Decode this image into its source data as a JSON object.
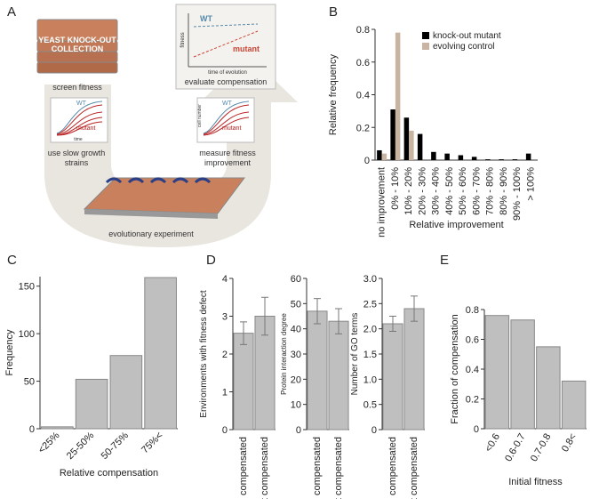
{
  "diagram": {
    "panel_label": "A",
    "collection_title": [
      "YEAST KNOCK-OUT",
      "COLLECTION"
    ],
    "screen": "screen fitness",
    "slow": [
      "use slow growth",
      "strains"
    ],
    "experiment": "evolutionary experiment",
    "measure": [
      "measure fitness",
      "improvement"
    ],
    "evaluate": "evaluate compensation",
    "wt": "WT",
    "mutant": "mutant",
    "cell_number": "cell number",
    "time": "time",
    "fitness": "fitness",
    "time_of_evolution": "time of evolution"
  },
  "chart_data": [
    {
      "type": "bar",
      "panel_label": "B",
      "ylabel": "Relative frequency",
      "xlabel": "Relative improvement",
      "categories": [
        "no improvement",
        "0% - 10%",
        "10% - 20%",
        "20% - 30%",
        "30% - 40%",
        "40% - 50%",
        "50% - 60%",
        "60% - 70%",
        "70% - 80%",
        "80% - 90%",
        "90% - 100%",
        "> 100%"
      ],
      "series": [
        {
          "name": "knock-out mutant",
          "color": "#000000",
          "values": [
            0.06,
            0.31,
            0.26,
            0.16,
            0.05,
            0.04,
            0.03,
            0.02,
            0.005,
            0.005,
            0.005,
            0.04
          ]
        },
        {
          "name": "evolving control",
          "color": "#c8b4a0",
          "values": [
            0.04,
            0.78,
            0.18,
            0,
            0,
            0,
            0,
            0,
            0,
            0,
            0,
            0
          ]
        }
      ],
      "ylim": [
        0,
        0.8
      ],
      "yticks": [
        0,
        0.2,
        0.4,
        0.6,
        0.8
      ],
      "legend": "top-right"
    },
    {
      "type": "bar",
      "panel_label": "C",
      "ylabel": "Frequency",
      "xlabel": "Relative compensation",
      "categories": [
        "<25%",
        "25-50%",
        "50-75%",
        "75%<"
      ],
      "values": [
        2,
        52,
        77,
        159
      ],
      "color": "#bfbfbf",
      "ylim": [
        0,
        160
      ],
      "yticks": [
        0,
        50,
        100,
        150
      ]
    },
    {
      "type": "bar",
      "panel_label": "D",
      "ylabel": "Environments with fitness defect",
      "categories": [
        "compensated",
        "not compensated"
      ],
      "values": [
        2.55,
        3.0
      ],
      "errors": [
        0.3,
        0.5
      ],
      "color": "#bfbfbf",
      "ylim": [
        0,
        4
      ],
      "yticks": [
        0,
        1,
        2,
        3,
        4
      ]
    },
    {
      "type": "bar",
      "ylabel": "Protein interaction degree",
      "categories": [
        "compensated",
        "not compensated"
      ],
      "values": [
        47,
        43
      ],
      "errors": [
        5,
        5
      ],
      "color": "#bfbfbf",
      "ylim": [
        0,
        60
      ],
      "yticks": [
        0,
        10,
        20,
        30,
        40,
        50,
        60
      ]
    },
    {
      "type": "bar",
      "ylabel": "Number of GO terms",
      "categories": [
        "compensated",
        "not compensated"
      ],
      "values": [
        2.1,
        2.4
      ],
      "errors": [
        0.15,
        0.25
      ],
      "color": "#bfbfbf",
      "ylim": [
        0,
        3
      ],
      "yticks": [
        0,
        0.5,
        {
          "value": 1,
          "label": "1.0"
        },
        1.5,
        {
          "value": 2,
          "label": "2.0"
        },
        2.5,
        {
          "value": 3,
          "label": "3.0"
        }
      ]
    },
    {
      "type": "bar",
      "panel_label": "E",
      "ylabel": "Fraction of compensation",
      "xlabel": "Initial fitness",
      "categories": [
        "<0.6",
        "0.6-0.7",
        "0.7-0.8",
        "0.8<"
      ],
      "values": [
        0.76,
        0.73,
        0.55,
        0.32
      ],
      "color": "#bfbfbf",
      "ylim": [
        0,
        0.8
      ],
      "yticks": [
        0,
        0.2,
        0.4,
        0.6,
        0.8
      ]
    }
  ]
}
